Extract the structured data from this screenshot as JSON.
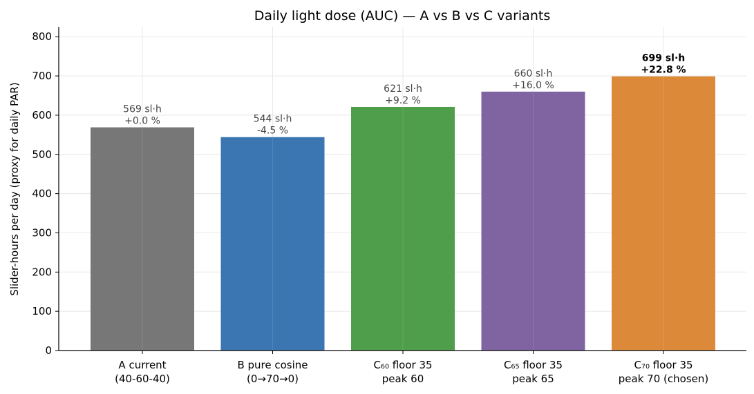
{
  "chart_data": {
    "type": "bar",
    "title": "Daily light dose (AUC) — A vs B vs C variants",
    "ylabel": "Slider-hours per day (proxy for daily PAR)",
    "xlabel": "",
    "ylim": [
      0,
      825
    ],
    "yticks": [
      0,
      100,
      200,
      300,
      400,
      500,
      600,
      700,
      800
    ],
    "grid": true,
    "categories": [
      [
        "A current",
        "(40-60-40)"
      ],
      [
        "B pure cosine",
        "(0→70→0)"
      ],
      [
        "C₆₀ floor 35",
        "peak 60"
      ],
      [
        "C₆₅ floor 35",
        "peak 65"
      ],
      [
        "C₇₀ floor 35",
        "peak 70 (chosen)"
      ]
    ],
    "values": [
      569,
      544,
      621,
      660,
      699
    ],
    "labels": [
      [
        "569 sl·h",
        "+0.0 %"
      ],
      [
        "544 sl·h",
        "-4.5 %"
      ],
      [
        "621 sl·h",
        "+9.2 %"
      ],
      [
        "660 sl·h",
        "+16.0 %"
      ],
      [
        "699 sl·h",
        "+22.8 %"
      ]
    ],
    "highlight_index": 4,
    "colors": [
      "#777777",
      "#3b75b2",
      "#4f9e4c",
      "#8064a2",
      "#dc8a3a"
    ]
  }
}
